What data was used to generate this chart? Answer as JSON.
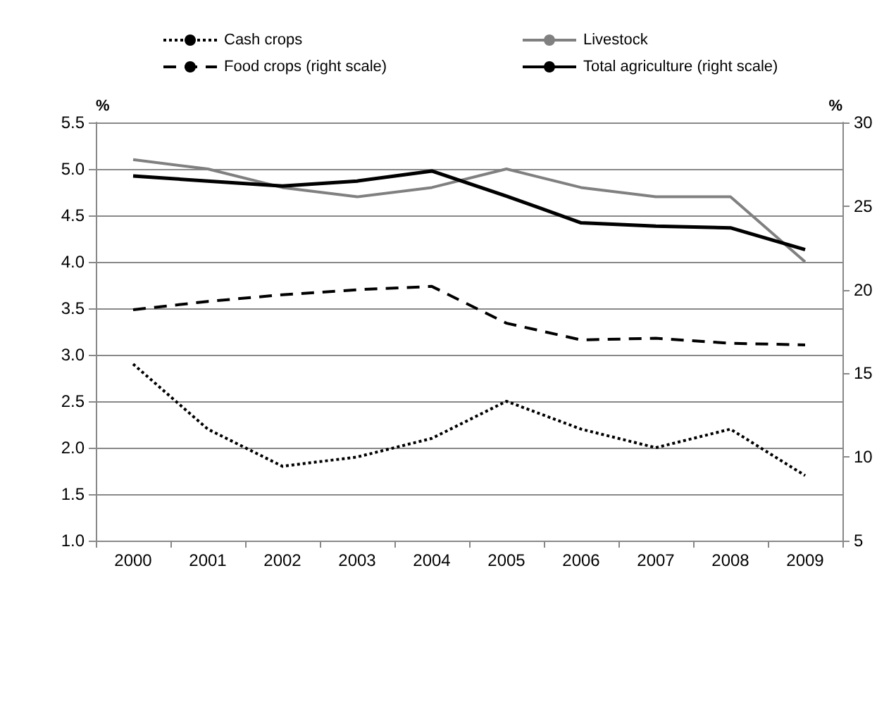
{
  "chart_data": {
    "type": "line",
    "ylabel": "%",
    "y2label": "%",
    "categories": [
      "2000",
      "2001",
      "2002",
      "2003",
      "2004",
      "2005",
      "2006",
      "2007",
      "2008",
      "2009"
    ],
    "series": [
      {
        "name": "Cash crops",
        "color": "#000000",
        "line_style": "dotted",
        "values": [
          2.9,
          2.2,
          1.8,
          1.9,
          2.1,
          2.5,
          2.2,
          2.0,
          2.2,
          1.7
        ]
      },
      {
        "name": "Food crops (right scale)",
        "color": "#000000",
        "line_style": "dashed",
        "axis": "y2",
        "values": [
          18.8,
          19.3,
          19.7,
          20.0,
          20.2,
          18.0,
          17.0,
          17.1,
          16.8,
          16.7
        ]
      },
      {
        "name": "Livestock",
        "color": "#808080",
        "line_style": "solid",
        "values": [
          5.1,
          5.0,
          4.8,
          4.7,
          4.8,
          5.0,
          4.8,
          4.7,
          4.7,
          4.0
        ]
      },
      {
        "name": "Total agriculture (right scale)",
        "color": "#000000",
        "line_style": "solid",
        "axis": "y2",
        "values": [
          26.8,
          26.5,
          26.2,
          26.5,
          27.1,
          25.6,
          24.0,
          23.8,
          23.7,
          22.4
        ]
      }
    ],
    "ylim": [
      1.0,
      5.5
    ],
    "yticks": [
      {
        "value": 1.0,
        "label": "1.0"
      },
      {
        "value": 1.5,
        "label": "1.5"
      },
      {
        "value": 2.0,
        "label": "2.0"
      },
      {
        "value": 2.5,
        "label": "2.5"
      },
      {
        "value": 3.0,
        "label": "3.0"
      },
      {
        "value": 3.5,
        "label": "3.5"
      },
      {
        "value": 4.0,
        "label": "4.0"
      },
      {
        "value": 4.5,
        "label": "4.5"
      },
      {
        "value": 5.0,
        "label": "5.0"
      },
      {
        "value": 5.5,
        "label": "5.5"
      }
    ],
    "y2lim": [
      5,
      30
    ],
    "y2ticks": [
      5,
      10,
      15,
      20,
      25,
      30
    ],
    "grid": "y",
    "legend": "top",
    "marker": "none"
  }
}
